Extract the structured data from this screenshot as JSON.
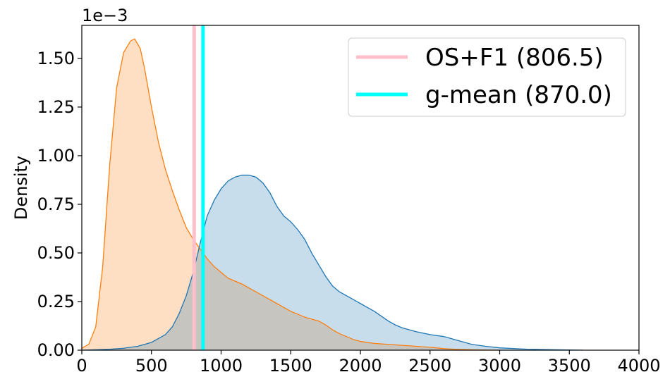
{
  "chart_data": {
    "type": "area",
    "title": "",
    "xlabel": "",
    "ylabel": "Density",
    "scale_label": "1e−3",
    "xlim": [
      0,
      4000
    ],
    "ylim": [
      0,
      1.67
    ],
    "x_ticks": [
      0,
      500,
      1000,
      1500,
      2000,
      2500,
      3000,
      3500,
      4000
    ],
    "x_tick_labels": [
      "0",
      "500",
      "1000",
      "1500",
      "2000",
      "2500",
      "3000",
      "3500",
      "4000"
    ],
    "y_ticks": [
      0,
      0.25,
      0.5,
      0.75,
      1.0,
      1.25,
      1.5
    ],
    "y_tick_labels": [
      "0.00",
      "0.25",
      "0.50",
      "0.75",
      "1.00",
      "1.25",
      "1.50"
    ],
    "grid": false,
    "legend_position": "top-right",
    "series": [
      {
        "color": "#ff7f0e",
        "fill": "#ffdcbe",
        "x": [
          0,
          50,
          100,
          150,
          200,
          250,
          300,
          350,
          380,
          420,
          450,
          500,
          550,
          600,
          650,
          700,
          750,
          800,
          850,
          900,
          950,
          1000,
          1050,
          1100,
          1150,
          1200,
          1250,
          1300,
          1350,
          1400,
          1450,
          1500,
          1550,
          1600,
          1650,
          1700,
          1750,
          1800,
          1850,
          1900,
          1950,
          2000,
          2100,
          2200,
          2300,
          2400,
          2500,
          2600,
          2700,
          2800,
          2900,
          3000
        ],
        "y": [
          0.01,
          0.03,
          0.12,
          0.43,
          0.95,
          1.35,
          1.53,
          1.59,
          1.6,
          1.55,
          1.45,
          1.25,
          1.07,
          0.93,
          0.82,
          0.72,
          0.63,
          0.57,
          0.52,
          0.47,
          0.43,
          0.4,
          0.37,
          0.355,
          0.34,
          0.32,
          0.3,
          0.28,
          0.26,
          0.24,
          0.22,
          0.2,
          0.185,
          0.17,
          0.16,
          0.15,
          0.13,
          0.105,
          0.085,
          0.07,
          0.055,
          0.045,
          0.035,
          0.03,
          0.025,
          0.02,
          0.015,
          0.008,
          0.004,
          0.002,
          0.001,
          0
        ]
      },
      {
        "color": "#1f77b4",
        "fill": "#c6dbef",
        "x": [
          0,
          100,
          200,
          300,
          400,
          500,
          600,
          650,
          700,
          750,
          800,
          850,
          900,
          950,
          1000,
          1050,
          1100,
          1150,
          1200,
          1250,
          1300,
          1350,
          1400,
          1450,
          1500,
          1550,
          1600,
          1650,
          1700,
          1750,
          1800,
          1850,
          1900,
          1950,
          2000,
          2050,
          2100,
          2150,
          2200,
          2250,
          2300,
          2400,
          2500,
          2600,
          2700,
          2800,
          2900,
          3000,
          3200,
          3400,
          3600
        ],
        "y": [
          0,
          0.002,
          0.005,
          0.01,
          0.02,
          0.04,
          0.08,
          0.12,
          0.19,
          0.28,
          0.4,
          0.55,
          0.69,
          0.77,
          0.83,
          0.87,
          0.89,
          0.9,
          0.9,
          0.89,
          0.86,
          0.81,
          0.74,
          0.69,
          0.66,
          0.62,
          0.57,
          0.5,
          0.44,
          0.38,
          0.33,
          0.3,
          0.28,
          0.26,
          0.24,
          0.22,
          0.2,
          0.175,
          0.15,
          0.13,
          0.115,
          0.095,
          0.08,
          0.07,
          0.05,
          0.03,
          0.02,
          0.012,
          0.005,
          0.002,
          0
        ]
      }
    ],
    "vertical_lines": [
      {
        "name": "OS+F1 (806.5)",
        "x": 806.5,
        "color": "#ffc0cb"
      },
      {
        "name": "g-mean (870.0)",
        "x": 870.0,
        "color": "#00ffff"
      }
    ]
  }
}
